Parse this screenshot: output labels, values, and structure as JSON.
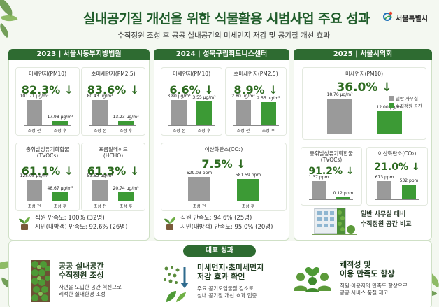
{
  "header": {
    "title": "실내공기질 개선을 위한 식물활용 시범사업 주요 성과",
    "subtitle": "수직정원 조성 후 공공 실내공간의 미세먼지 저감 및 공기질 개선 효과",
    "logo_text": "서울특별시"
  },
  "panels": [
    {
      "header": "2023 | 서울시동부지방법원",
      "cards": [
        {
          "label": "미세먼지(PM10)",
          "value": "82.3% ↓",
          "before": "101.71 μg/m³",
          "after": "17.98 μg/m³",
          "before_x": "조성 전",
          "after_x": "조성 후"
        },
        {
          "label": "초미세먼지(PM2.5)",
          "value": "83.6% ↓",
          "before": "80.43 μg/m³",
          "after": "13.23 μg/m³",
          "before_x": "조성 전",
          "after_x": "조성 후"
        },
        {
          "label": "총휘발성유기화합물\n(TVOCs)",
          "value": "61.1% ↓",
          "before": "125.08 μg/m³",
          "after": "48.67 μg/m³",
          "before_x": "조성 전",
          "after_x": "조성 후"
        },
        {
          "label": "포름알데히드\n(HCHO)",
          "value": "61.3% ↓",
          "before": "53.62 μg/m³",
          "after": "20.74 μg/m³",
          "before_x": "조성 전",
          "after_x": "조성 후"
        }
      ],
      "satisfaction": [
        "직원 만족도: 100% (32명)",
        "시민(내방객) 만족도: 92.6% (26명)"
      ]
    },
    {
      "header": "2024 | 성북구립휘트니스센터",
      "cards": [
        {
          "label": "미세먼지(PM10)",
          "value": "6.6% ↓",
          "before": "3.80 μg/m³",
          "after": "3.55 μg/m³",
          "before_x": "조성 전",
          "after_x": "조성 후"
        },
        {
          "label": "초미세먼지(PM2.5)",
          "value": "8.9% ↓",
          "before": "2.80 μg/m³",
          "after": "2.55 μg/m³",
          "before_x": "조성 전",
          "after_x": "조성 후"
        },
        {
          "label": "이산화탄소(CO₂)",
          "value": "7.5% ↓",
          "before": "629.03 ppm",
          "after": "581.59 ppm",
          "before_x": "조성 전",
          "after_x": "조성 후"
        }
      ],
      "satisfaction": [
        "직원 만족도: 94.6% (25명)",
        "시민(내방객) 만족도: 95.0% (20명)"
      ]
    },
    {
      "header": "2025 | 서울시의회",
      "cards": [
        {
          "label": "미세먼지(PM10)",
          "value": "36.0% ↓",
          "before": "18.76 μg/m³",
          "after": "12.00 μg/m³"
        },
        {
          "label": "총휘발성유기화합물\n(TVOCs)",
          "value": "91.2% ↓",
          "before": "1.37 ppm",
          "after": "0.12 ppm"
        },
        {
          "label": "이산화탄소(CO₂)",
          "value": "21.0% ↓",
          "before": "673 ppm",
          "after": "532 ppm"
        }
      ],
      "legend": [
        "일반 사무실",
        "수직정원 공간"
      ],
      "note": [
        "일반 사무실 대비",
        "수직정원 공간 비교"
      ]
    }
  ],
  "summary": {
    "header": "대표 성과",
    "items": [
      {
        "title": [
          "공공 실내공간",
          "수직정원 조성"
        ],
        "desc": [
          "자연을 도입한 공간 혁신으로",
          "쾌적한 실내환경 조성"
        ]
      },
      {
        "title": [
          "미세먼지·초미세먼지",
          "저감 효과 확인"
        ],
        "desc": [
          "주요 공기오염물질 감소로",
          "실내 공기질 개선 효과 입증"
        ]
      },
      {
        "title": [
          "쾌적성 및",
          "이용 만족도 향상"
        ],
        "desc": [
          "직원·이용자의 만족도 향상으로",
          "공공 서비스 품질 제고"
        ]
      }
    ]
  },
  "colors": {
    "accent": "#2e6b31",
    "before_bar": "#9a9a9a",
    "after_bar": "#3c9a35"
  }
}
